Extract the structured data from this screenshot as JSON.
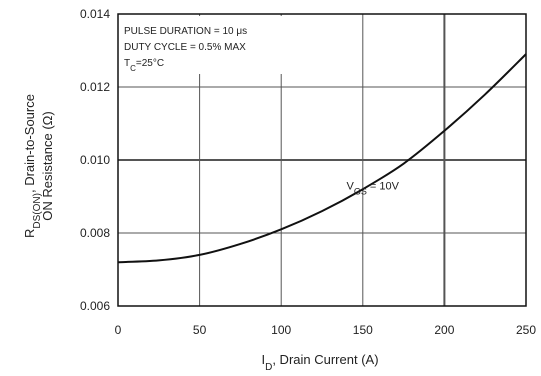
{
  "chart_data": {
    "type": "line",
    "title": "",
    "xlabel": {
      "main": "I",
      "sub": "D",
      "rest": ", Drain Current (A)"
    },
    "ylabel": {
      "line1_main": "R",
      "line1_sub": "DS(ON)",
      "line1_rest": ", Drain-to-Source",
      "line2": "ON Resistance (Ω)"
    },
    "xlim": [
      0,
      250
    ],
    "ylim": [
      0.006,
      0.014
    ],
    "x_ticks": [
      0,
      50,
      100,
      150,
      200,
      250
    ],
    "x_tick_labels": [
      "0",
      "50",
      "100",
      "150",
      "200",
      "250"
    ],
    "y_ticks": [
      0.006,
      0.008,
      0.01,
      0.012,
      0.014
    ],
    "y_tick_labels": [
      "0.006",
      "0.008",
      "0.010",
      "0.012",
      "0.014"
    ],
    "grid": true,
    "conditions": [
      "PULSE DURATION = 10 μs",
      "DUTY CYCLE = 0.5% MAX",
      {
        "main": "T",
        "sub": "C",
        "rest": "=25°C"
      }
    ],
    "series": [
      {
        "label": {
          "main": "V",
          "sub": "GS",
          "rest": " = 10V"
        },
        "x": [
          0,
          25,
          50,
          75,
          100,
          125,
          150,
          175,
          200,
          225,
          250
        ],
        "y": [
          0.0072,
          0.00725,
          0.0074,
          0.0077,
          0.0081,
          0.0086,
          0.0092,
          0.0099,
          0.0108,
          0.0118,
          0.0129
        ]
      }
    ],
    "colors": {
      "line": "#111111",
      "grid": "#555555",
      "axis": "#111111"
    }
  }
}
